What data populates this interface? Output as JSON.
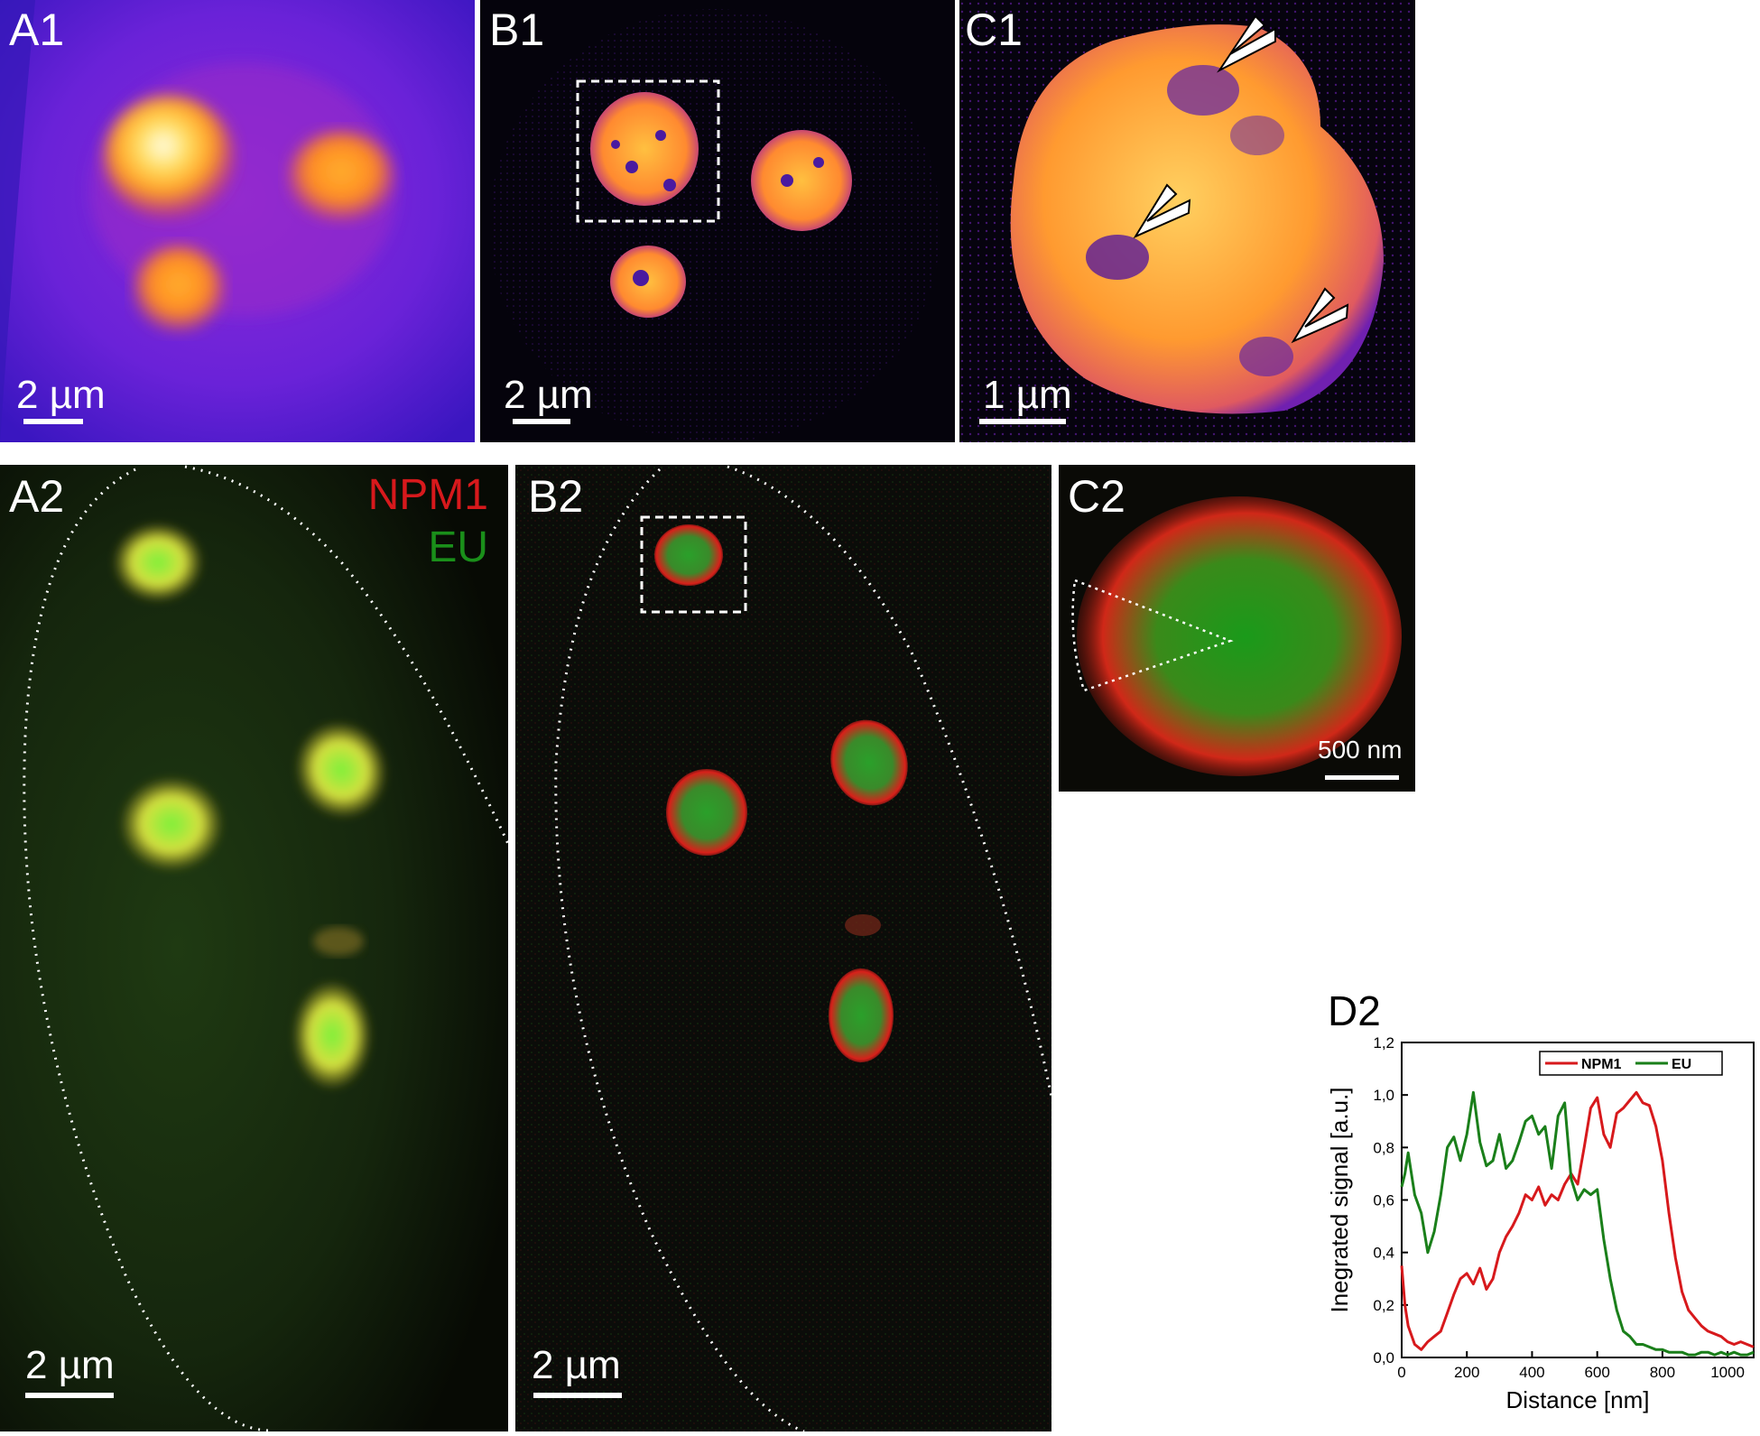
{
  "panels": {
    "a1": {
      "label": "A1",
      "scale": "2 µm"
    },
    "b1": {
      "label": "B1",
      "scale": "2 µm"
    },
    "c1": {
      "label": "C1",
      "scale": "1 µm"
    },
    "a2": {
      "label": "A2",
      "scale": "2 µm",
      "legend_npm1": "NPM1",
      "legend_eu": "EU"
    },
    "b2": {
      "label": "B2",
      "scale": "2 µm"
    },
    "c2": {
      "label": "C2",
      "scale": "500 nm"
    },
    "d2": {
      "label": "D2"
    }
  },
  "colors": {
    "npm1": "#d7191c",
    "eu": "#1a7f1a"
  },
  "chart_data": {
    "type": "line",
    "xlabel": "Distance [nm]",
    "ylabel": "Inegrated signal [a.u.]",
    "xlim": [
      0,
      1080
    ],
    "ylim": [
      0,
      1.2
    ],
    "xticks": [
      "0",
      "200",
      "400",
      "600",
      "800",
      "1000"
    ],
    "yticks": [
      "0,0",
      "0,2",
      "0,4",
      "0,6",
      "0,8",
      "1,0",
      "1,2"
    ],
    "legend_position": "top-right",
    "series": [
      {
        "name": "NPM1",
        "color": "#d7191c",
        "x": [
          0,
          10,
          20,
          40,
          60,
          80,
          100,
          120,
          140,
          160,
          180,
          200,
          220,
          240,
          260,
          280,
          300,
          320,
          340,
          360,
          380,
          400,
          420,
          440,
          460,
          480,
          500,
          520,
          540,
          560,
          580,
          600,
          620,
          640,
          660,
          680,
          700,
          720,
          740,
          760,
          780,
          800,
          820,
          840,
          860,
          880,
          900,
          920,
          940,
          960,
          980,
          1000,
          1020,
          1040,
          1060,
          1080
        ],
        "y": [
          0.35,
          0.2,
          0.12,
          0.05,
          0.03,
          0.06,
          0.08,
          0.1,
          0.17,
          0.24,
          0.3,
          0.32,
          0.28,
          0.34,
          0.26,
          0.3,
          0.4,
          0.46,
          0.5,
          0.55,
          0.62,
          0.6,
          0.65,
          0.58,
          0.62,
          0.6,
          0.66,
          0.7,
          0.66,
          0.8,
          0.95,
          0.99,
          0.85,
          0.8,
          0.93,
          0.95,
          0.98,
          1.01,
          0.97,
          0.96,
          0.88,
          0.75,
          0.55,
          0.38,
          0.25,
          0.18,
          0.15,
          0.12,
          0.1,
          0.09,
          0.08,
          0.06,
          0.05,
          0.06,
          0.05,
          0.04
        ]
      },
      {
        "name": "EU",
        "color": "#1a7f1a",
        "x": [
          0,
          10,
          20,
          40,
          60,
          80,
          100,
          120,
          140,
          160,
          180,
          200,
          220,
          240,
          260,
          280,
          300,
          320,
          340,
          360,
          380,
          400,
          420,
          440,
          460,
          480,
          500,
          520,
          540,
          560,
          580,
          600,
          620,
          640,
          660,
          680,
          700,
          720,
          740,
          760,
          780,
          800,
          820,
          840,
          860,
          880,
          900,
          920,
          940,
          960,
          980,
          1000,
          1020,
          1040,
          1060,
          1080
        ],
        "y": [
          0.65,
          0.7,
          0.78,
          0.62,
          0.55,
          0.4,
          0.48,
          0.62,
          0.8,
          0.84,
          0.75,
          0.85,
          1.01,
          0.82,
          0.73,
          0.75,
          0.85,
          0.72,
          0.75,
          0.82,
          0.9,
          0.92,
          0.85,
          0.88,
          0.72,
          0.92,
          0.97,
          0.68,
          0.6,
          0.64,
          0.62,
          0.64,
          0.45,
          0.3,
          0.18,
          0.1,
          0.08,
          0.05,
          0.05,
          0.04,
          0.03,
          0.03,
          0.02,
          0.02,
          0.02,
          0.01,
          0.01,
          0.02,
          0.02,
          0.01,
          0.02,
          0.01,
          0.02,
          0.01,
          0.01,
          0.02
        ]
      }
    ]
  }
}
